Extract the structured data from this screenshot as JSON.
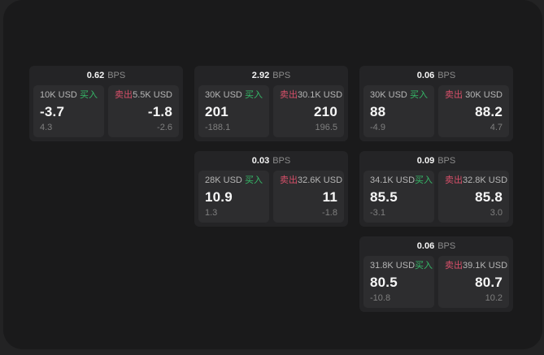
{
  "labels": {
    "bps_suffix": "BPS",
    "buy": "买入",
    "sell": "卖出"
  },
  "colors": {
    "outer_background": "#232324",
    "panel_background": "#1a1a1b",
    "card_background": "#242426",
    "box_background": "#2d2d2f",
    "buy_green": "#35b968",
    "sell_red": "#d8506a",
    "primary_text": "#f5f5f5",
    "muted_text": "#8c8c8c"
  },
  "cards": [
    {
      "bps": "0.62",
      "grid": {
        "col": 1,
        "row": 1
      },
      "buy": {
        "size": "10K USD",
        "price": "-3.7",
        "delta": "4.3"
      },
      "sell": {
        "size": "5.5K USD",
        "price": "-1.8",
        "delta": "-2.6"
      }
    },
    {
      "bps": "2.92",
      "grid": {
        "col": 2,
        "row": 1
      },
      "buy": {
        "size": "30K USD",
        "price": "201",
        "delta": "-188.1"
      },
      "sell": {
        "size": "30.1K USD",
        "price": "210",
        "delta": "196.5"
      }
    },
    {
      "bps": "0.06",
      "grid": {
        "col": 3,
        "row": 1
      },
      "buy": {
        "size": "30K USD",
        "price": "88",
        "delta": "-4.9"
      },
      "sell": {
        "size": "30K USD",
        "price": "88.2",
        "delta": "4.7"
      }
    },
    {
      "bps": "0.03",
      "grid": {
        "col": 2,
        "row": 2
      },
      "buy": {
        "size": "28K USD",
        "price": "10.9",
        "delta": "1.3"
      },
      "sell": {
        "size": "32.6K USD",
        "price": "11",
        "delta": "-1.8"
      }
    },
    {
      "bps": "0.09",
      "grid": {
        "col": 3,
        "row": 2
      },
      "buy": {
        "size": "34.1K USD",
        "price": "85.5",
        "delta": "-3.1"
      },
      "sell": {
        "size": "32.8K USD",
        "price": "85.8",
        "delta": "3.0"
      }
    },
    {
      "bps": "0.06",
      "grid": {
        "col": 3,
        "row": 3
      },
      "buy": {
        "size": "31.8K USD",
        "price": "80.5",
        "delta": "-10.8"
      },
      "sell": {
        "size": "39.1K USD",
        "price": "80.7",
        "delta": "10.2"
      }
    }
  ]
}
